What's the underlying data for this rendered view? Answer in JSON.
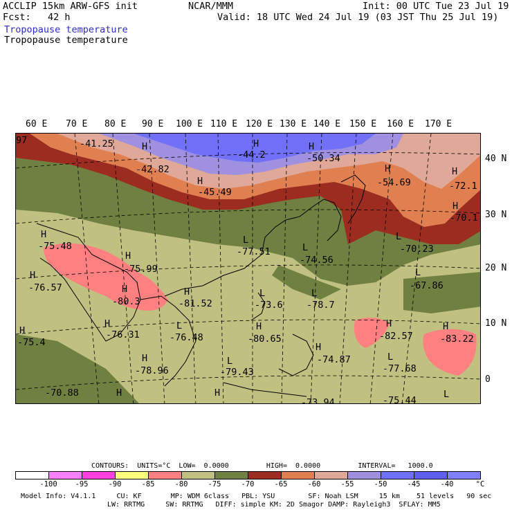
{
  "header": {
    "line1_left": "ACCLIP 15km ARW-GFS init",
    "line1_center": "NCAR/MMM",
    "line1_right": "Init: 00 UTC Tue 23 Jul 19",
    "line2_left": "Fcst:   42 h",
    "line2_right": "Valid: 18 UTC Wed 24 Jul 19 (03 JST Thu 25 Jul 19)",
    "line3": "Tropopause temperature",
    "line4": "Tropopause temperature"
  },
  "lon_labels": [
    "60 E",
    "70 E",
    "80 E",
    "90 E",
    "100 E",
    "110 E",
    "120 E",
    "130 E",
    "140 E",
    "150 E",
    "160 E",
    "170 E"
  ],
  "lat_labels": [
    "40 N",
    "30 N",
    "20 N",
    "10 N",
    "0"
  ],
  "colors": {
    "c_lt_m100": "#ffffff",
    "c_m100_m95": "#ff80ff",
    "c_m95_m90": "#ff40e0",
    "c_m90_m85": "#ffff80",
    "c_m85_m80": "#ff8080",
    "c_m80_m75": "#c0c080",
    "c_m75_m70": "#708040",
    "c_m70_m65": "#9c2c20",
    "c_m65_m60": "#e08050",
    "c_m60_m55": "#e0a898",
    "c_m55_m50": "#a090e0",
    "c_m50_m45": "#7070f8",
    "c_m45_m40": "#6060f0",
    "c_gt_m40": "#8080ff"
  },
  "map_labels": [
    {
      "text": "-41.25"
    },
    {
      "text": "-42.82"
    },
    {
      "text": "-44.2"
    },
    {
      "text": "-50.34"
    },
    {
      "text": "-45.49"
    },
    {
      "text": "-54.69"
    },
    {
      "text": "-72.1"
    },
    {
      "text": "-70.1"
    },
    {
      "text": "-70.23"
    },
    {
      "text": "-67.86"
    },
    {
      "text": "-75.48"
    },
    {
      "text": "-77.51"
    },
    {
      "text": "-74.56"
    },
    {
      "text": "-75.99"
    },
    {
      "text": "-76.57"
    },
    {
      "text": "-80.3"
    },
    {
      "text": "-81.52"
    },
    {
      "text": "-73.6"
    },
    {
      "text": "-78.7"
    },
    {
      "text": "-76.31"
    },
    {
      "text": "-76.48"
    },
    {
      "text": "-80.65"
    },
    {
      "text": "-82.57"
    },
    {
      "text": "-83.22"
    },
    {
      "text": "-75.4"
    },
    {
      "text": "-74.87"
    },
    {
      "text": "-77.68"
    },
    {
      "text": "-78.96"
    },
    {
      "text": "-79.43"
    },
    {
      "text": "-70.88"
    },
    {
      "text": "-75.44"
    },
    {
      "text": "-73.94"
    },
    {
      "text": "97"
    }
  ],
  "hl_labels": [
    "H",
    "H",
    "H",
    "H",
    "H",
    "H",
    "H",
    "H",
    "H",
    "L",
    "L",
    "L",
    "L",
    "H",
    "H",
    "H",
    "H",
    "L",
    "L",
    "L",
    "H",
    "H",
    "H",
    "H",
    "H",
    "L",
    "H",
    "H",
    "H",
    "L",
    "L"
  ],
  "footer": {
    "contours_line": "CONTOURS:  UNITS=°C  LOW=  0.0000         HIGH=  0.0000         INTERVAL=   1000.0",
    "colorbar_labels": [
      "-100",
      "-95",
      "-90",
      "-85",
      "-80",
      "-75",
      "-70",
      "-65",
      "-60",
      "-55",
      "-50",
      "-45",
      "-40",
      "°C"
    ],
    "model_line1": "Model Info: V4.1.1     CU: KF       MP: WDM 6class   PBL: YSU        SF: Noah LSM     15 km    51 levels   90 sec",
    "model_line2": "LW: RRTMG     SW: RRTMG   DIFF: simple KM: 2D Smagor DAMP: Rayleigh3  SFLAY: MM5"
  }
}
